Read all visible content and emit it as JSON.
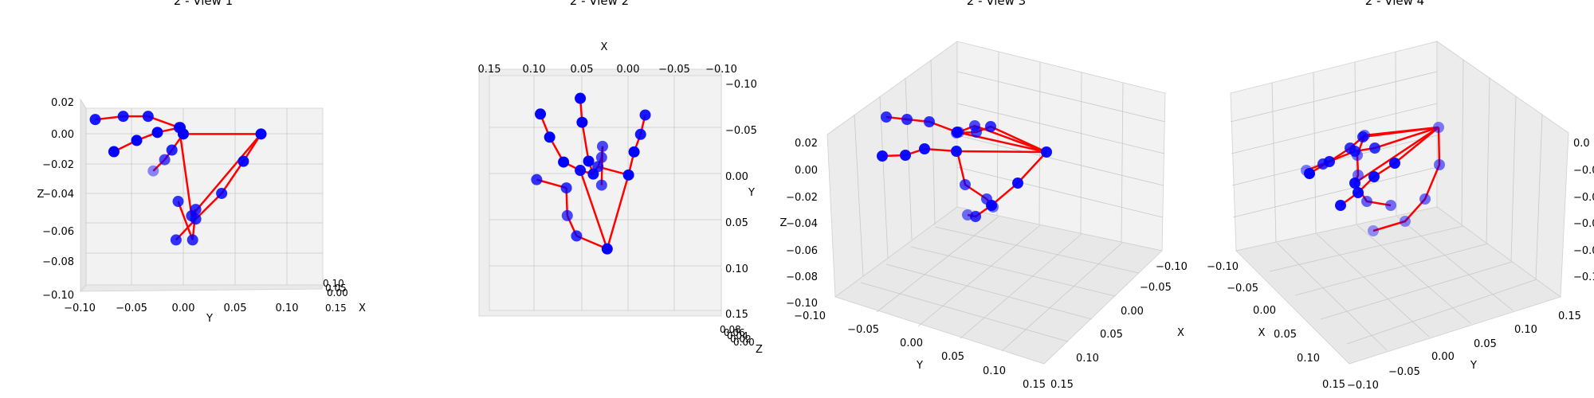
{
  "chart_data": [
    {
      "type": "scatter",
      "projection": "3d",
      "title": "2 - View 1",
      "xlabel": "X",
      "ylabel": "Y",
      "zlabel": "Z",
      "y_ticks": [
        "−0.10",
        "−0.05",
        "0.00",
        "0.05",
        "0.10"
      ],
      "z_ticks": [
        "0.02",
        "0.00",
        "−0.02",
        "−0.04",
        "−0.06",
        "−0.08",
        "−0.10"
      ],
      "x_ticks": [
        "0.10",
        "0.05",
        "0.00",
        "0.15"
      ],
      "ylim": [
        -0.1,
        0.1
      ],
      "zlim": [
        -0.1,
        0.02
      ],
      "grid": true,
      "marker_color": "#0000ff",
      "line_color": "#ff0000",
      "edges": [
        [
          0,
          1
        ],
        [
          1,
          2
        ],
        [
          2,
          3
        ],
        [
          3,
          4
        ],
        [
          0,
          5
        ],
        [
          5,
          6
        ],
        [
          6,
          7
        ],
        [
          7,
          8
        ],
        [
          5,
          9
        ],
        [
          9,
          10
        ],
        [
          10,
          11
        ],
        [
          11,
          12
        ],
        [
          9,
          13
        ],
        [
          13,
          14
        ],
        [
          14,
          15
        ],
        [
          15,
          16
        ],
        [
          13,
          17
        ],
        [
          17,
          18
        ],
        [
          18,
          19
        ],
        [
          19,
          20
        ],
        [
          0,
          17
        ]
      ],
      "points": [
        {
          "y": 0.075,
          "z": 0.0,
          "a": 1.0
        },
        {
          "y": 0.058,
          "z": -0.017,
          "a": 0.95
        },
        {
          "y": 0.037,
          "z": -0.037,
          "a": 0.85
        },
        {
          "y": 0.012,
          "z": -0.053,
          "a": 0.8
        },
        {
          "y": -0.007,
          "z": -0.066,
          "a": 0.8
        },
        {
          "y": 0.0,
          "z": 0.0,
          "a": 1.0
        },
        {
          "y": -0.011,
          "z": -0.01,
          "a": 0.85
        },
        {
          "y": -0.018,
          "z": -0.016,
          "a": 0.7
        },
        {
          "y": -0.029,
          "z": -0.023,
          "a": 0.45
        },
        {
          "y": -0.003,
          "z": 0.004,
          "a": 0.95
        },
        {
          "y": -0.025,
          "z": 0.001,
          "a": 1.0
        },
        {
          "y": -0.045,
          "z": -0.004,
          "a": 1.0
        },
        {
          "y": -0.067,
          "z": -0.011,
          "a": 1.0
        },
        {
          "y": -0.004,
          "z": 0.004,
          "a": 0.8
        },
        {
          "y": -0.034,
          "z": 0.011,
          "a": 0.9
        },
        {
          "y": -0.058,
          "z": 0.011,
          "a": 0.9
        },
        {
          "y": -0.085,
          "z": 0.009,
          "a": 0.9
        },
        {
          "y": 0.008,
          "z": -0.051,
          "a": 0.8
        },
        {
          "y": 0.012,
          "z": -0.047,
          "a": 0.8
        },
        {
          "y": 0.009,
          "z": -0.066,
          "a": 0.8
        },
        {
          "y": -0.005,
          "z": -0.042,
          "a": 0.8
        }
      ]
    },
    {
      "type": "scatter",
      "projection": "3d",
      "title": "2 - View 2",
      "xlabel": "X",
      "ylabel": "Y",
      "zlabel": "Z",
      "x_ticks": [
        "0.15",
        "0.10",
        "0.05",
        "0.00",
        "−0.05",
        "−0.10"
      ],
      "y_ticks": [
        "−0.10",
        "−0.05",
        "0.00",
        "0.05",
        "0.10",
        "0.15"
      ],
      "z_ticks": [
        "0.08",
        "0.06",
        "0.04",
        "0.02",
        "0.00"
      ],
      "xlim": [
        0.15,
        -0.1
      ],
      "ylim": [
        -0.1,
        0.15
      ],
      "grid": true,
      "marker_color": "#0000ff",
      "line_color": "#ff0000",
      "edges": [
        [
          0,
          1
        ],
        [
          1,
          2
        ],
        [
          2,
          3
        ],
        [
          3,
          4
        ],
        [
          0,
          5
        ],
        [
          5,
          6
        ],
        [
          6,
          7
        ],
        [
          7,
          8
        ],
        [
          5,
          9
        ],
        [
          9,
          10
        ],
        [
          10,
          11
        ],
        [
          11,
          12
        ],
        [
          9,
          13
        ],
        [
          13,
          14
        ],
        [
          14,
          15
        ],
        [
          15,
          16
        ],
        [
          13,
          17
        ],
        [
          17,
          18
        ],
        [
          18,
          19
        ],
        [
          19,
          20
        ],
        [
          0,
          17
        ]
      ],
      "points": [
        {
          "x": 0.023,
          "y": 0.079,
          "a": 1.0
        },
        {
          "x": 0.056,
          "y": 0.065,
          "a": 0.8
        },
        {
          "x": 0.066,
          "y": 0.043,
          "a": 0.7
        },
        {
          "x": 0.067,
          "y": 0.013,
          "a": 0.8
        },
        {
          "x": 0.099,
          "y": 0.004,
          "a": 0.8
        },
        {
          "x": 0.052,
          "y": -0.006,
          "a": 0.95
        },
        {
          "x": 0.07,
          "y": -0.015,
          "a": 1.0
        },
        {
          "x": 0.085,
          "y": -0.042,
          "a": 1.0
        },
        {
          "x": 0.095,
          "y": -0.067,
          "a": 1.0
        },
        {
          "x": 0.038,
          "y": -0.002,
          "a": 0.95
        },
        {
          "x": 0.043,
          "y": -0.016,
          "a": 1.0
        },
        {
          "x": 0.05,
          "y": -0.058,
          "a": 1.0
        },
        {
          "x": 0.052,
          "y": -0.084,
          "a": 1.0
        },
        {
          "x": 0.033,
          "y": -0.01,
          "a": 0.8
        },
        {
          "x": 0.029,
          "y": -0.02,
          "a": 0.7
        },
        {
          "x": 0.028,
          "y": -0.032,
          "a": 0.7
        },
        {
          "x": 0.029,
          "y": 0.01,
          "a": 0.7
        },
        {
          "x": 0.0,
          "y": -0.001,
          "a": 1.0
        },
        {
          "x": -0.006,
          "y": -0.026,
          "a": 1.0
        },
        {
          "x": -0.013,
          "y": -0.045,
          "a": 0.9
        },
        {
          "x": -0.018,
          "y": -0.066,
          "a": 0.9
        }
      ]
    },
    {
      "type": "scatter",
      "projection": "3d",
      "title": "2 - View 3",
      "xlabel": "X",
      "ylabel": "Y",
      "zlabel": "Z",
      "x_ticks": [
        "−0.10",
        "−0.05",
        "0.00",
        "0.05",
        "0.10",
        "0.15"
      ],
      "y_ticks": [
        "−0.10",
        "−0.05",
        "0.00",
        "0.05",
        "0.10",
        "0.15"
      ],
      "z_ticks": [
        "0.02",
        "0.00",
        "−0.02",
        "−0.04",
        "−0.06",
        "−0.08",
        "−0.10"
      ],
      "grid": true,
      "marker_color": "#0000ff",
      "line_color": "#ff0000"
    },
    {
      "type": "scatter",
      "projection": "3d",
      "title": "2 - View 4",
      "xlabel": "X",
      "ylabel": "Y",
      "zlabel": "Z",
      "x_ticks": [
        "−0.10",
        "−0.05",
        "0.00",
        "0.05",
        "0.10",
        "0.15"
      ],
      "y_ticks": [
        "−0.10",
        "−0.05",
        "0.00",
        "0.05",
        "0.10",
        "0.15"
      ],
      "z_ticks": [
        "0.0",
        "−0.0",
        "−0.0",
        "−0.0",
        "−0.0",
        "−0.1"
      ],
      "grid": true,
      "marker_color": "#0000ff",
      "line_color": "#ff0000"
    }
  ]
}
